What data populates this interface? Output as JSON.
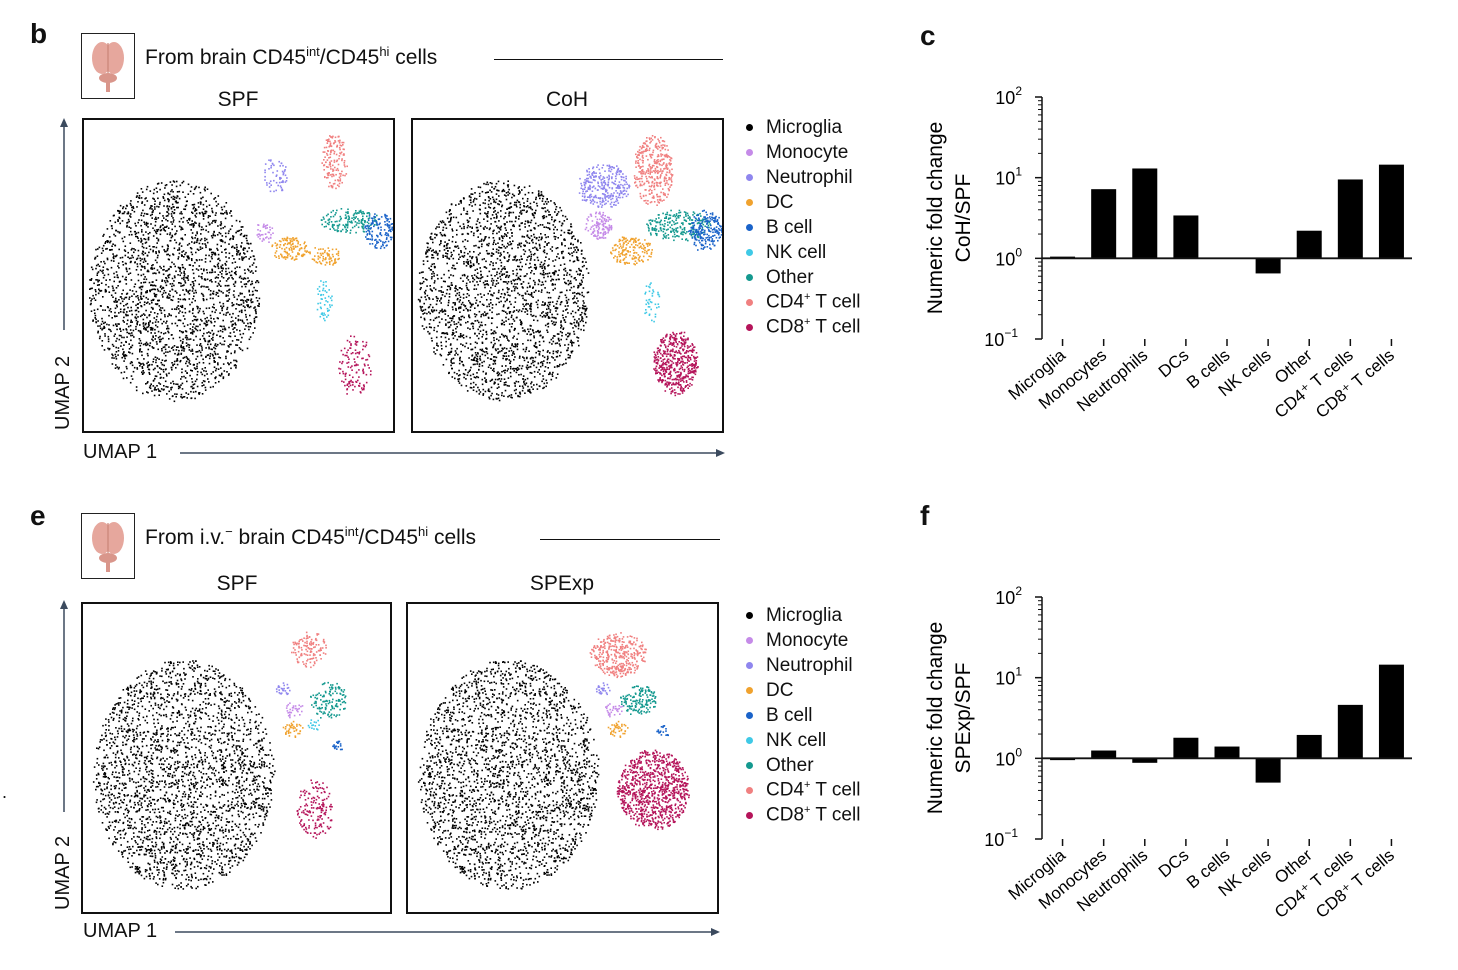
{
  "panels": {
    "b": {
      "letter": "b",
      "header_prefix": "From brain CD45",
      "header_sup1": "int",
      "header_mid": "/CD45",
      "header_sup2": "hi",
      "header_suffix": " cells",
      "left_title": "SPF",
      "right_title": "CoH",
      "x_axis": "UMAP 1",
      "y_axis": "UMAP 2"
    },
    "e": {
      "letter": "e",
      "header_prefix": "From i.v.",
      "header_minus": "−",
      "header_prefix2": " brain CD45",
      "header_sup1": "int",
      "header_mid": "/CD45",
      "header_sup2": "hi",
      "header_suffix": " cells",
      "left_title": "SPF",
      "right_title": "SPExp",
      "x_axis": "UMAP 1",
      "y_axis": "UMAP 2"
    },
    "c": {
      "letter": "c"
    },
    "f": {
      "letter": "f"
    }
  },
  "legend": [
    {
      "label": "Microglia",
      "color": "#000000"
    },
    {
      "label": "Monocyte",
      "color": "#c58be8"
    },
    {
      "label": "Neutrophil",
      "color": "#8f86ee"
    },
    {
      "label": "DC",
      "color": "#f0a22e"
    },
    {
      "label": "B cell",
      "color": "#1a63c9"
    },
    {
      "label": "NK cell",
      "color": "#3fc9e6"
    },
    {
      "label": "Other",
      "color": "#14998f"
    },
    {
      "label": "CD4",
      "sup": "+",
      "suffix": " T cell",
      "color": "#f08080"
    },
    {
      "label": "CD8",
      "sup": "+",
      "suffix": " T cell",
      "color": "#b5145a"
    }
  ],
  "stray_mark": ".",
  "chart_data": [
    {
      "id": "c",
      "type": "bar",
      "ylabel_line1": "Numeric fold change",
      "ylabel_line2": "CoH/SPF",
      "yscale": "log",
      "ylim": [
        0.1,
        100
      ],
      "baseline": 1,
      "yticks": [
        {
          "base": "10",
          "exp": "2"
        },
        {
          "base": "10",
          "exp": "1"
        },
        {
          "base": "10",
          "exp": "0"
        },
        {
          "base": "10",
          "exp": "−1"
        }
      ],
      "categories": [
        "Microglia",
        "Monocytes",
        "Neutrophils",
        "DCs",
        "B cells",
        "NK cells",
        "Other",
        "CD4⁺ T cells",
        "CD8⁺ T cells"
      ],
      "values": [
        1.05,
        7.2,
        13.0,
        3.4,
        1.0,
        0.65,
        2.2,
        9.5,
        14.5
      ],
      "bar_color": "#000000"
    },
    {
      "id": "f",
      "type": "bar",
      "ylabel_line1": "Numeric fold change",
      "ylabel_line2": "SPExp/SPF",
      "yscale": "log",
      "ylim": [
        0.1,
        100
      ],
      "baseline": 1,
      "yticks": [
        {
          "base": "10",
          "exp": "2"
        },
        {
          "base": "10",
          "exp": "1"
        },
        {
          "base": "10",
          "exp": "0"
        },
        {
          "base": "10",
          "exp": "−1"
        }
      ],
      "categories": [
        "Microglia",
        "Monocytes",
        "Neutrophils",
        "DCs",
        "B cells",
        "NK cells",
        "Other",
        "CD4⁺ T cells",
        "CD8⁺ T cells"
      ],
      "values": [
        0.95,
        1.25,
        0.88,
        1.8,
        1.4,
        0.5,
        1.95,
        4.6,
        14.5
      ],
      "bar_color": "#000000"
    }
  ]
}
